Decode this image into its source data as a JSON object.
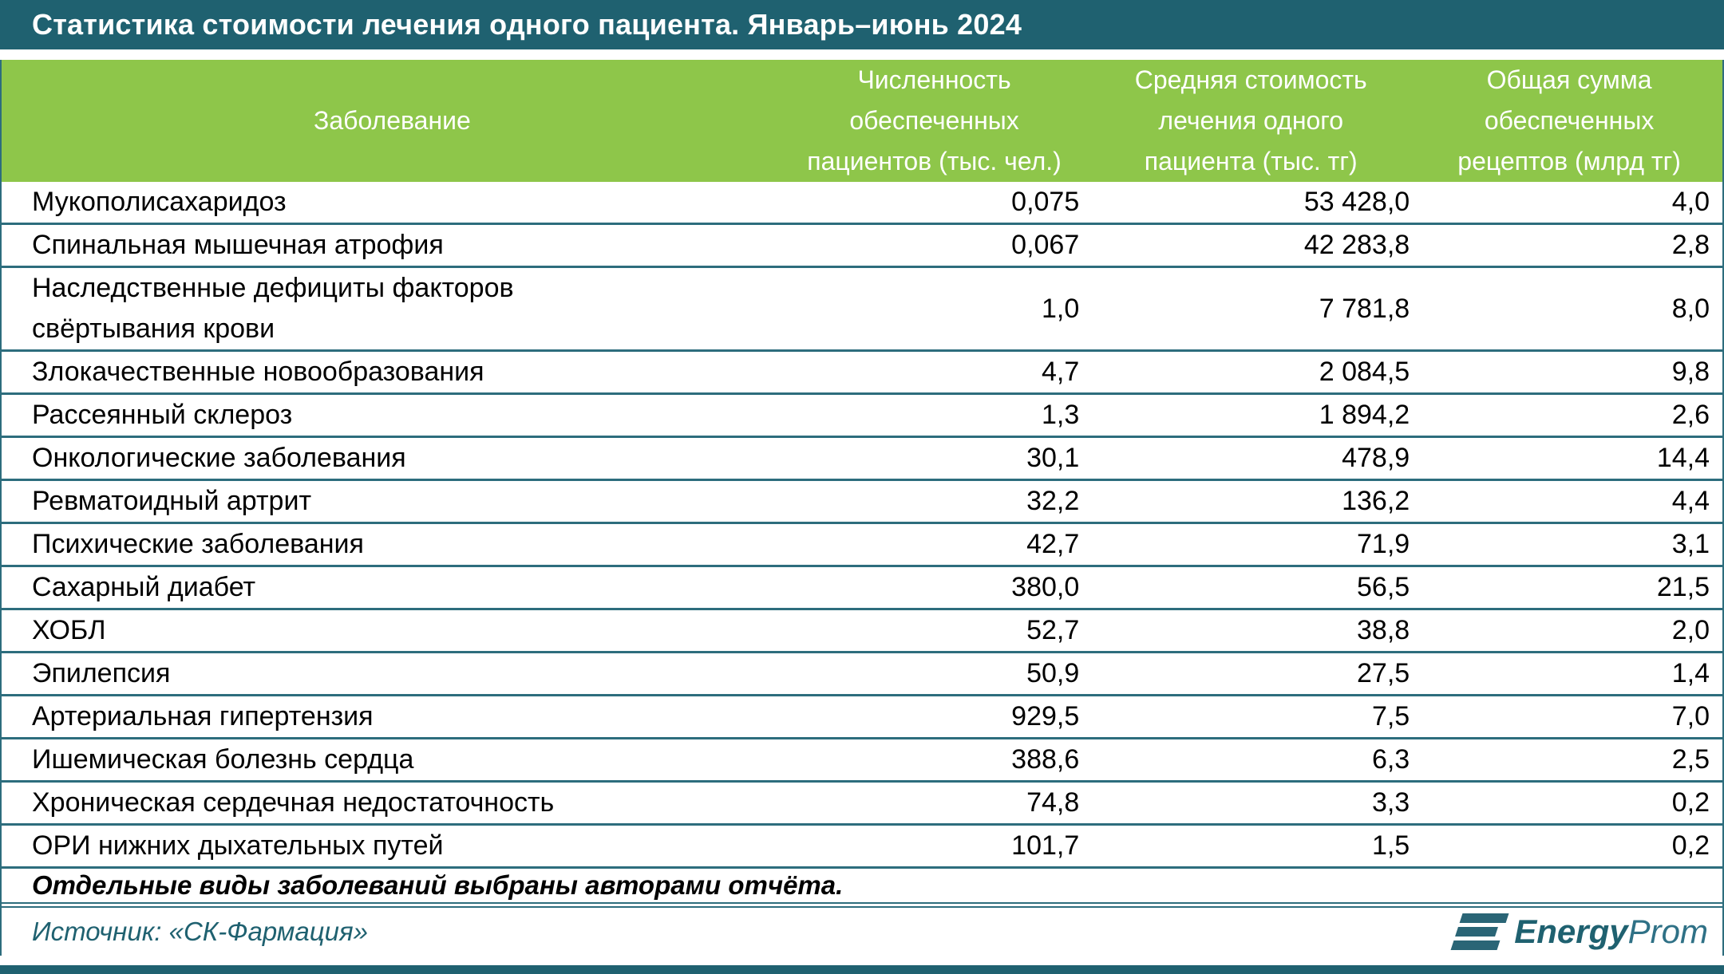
{
  "title": "Статистика стоимости лечения одного пациента. Январь–июнь 2024",
  "colors": {
    "header_teal": "#1f6170",
    "header_green": "#8ec64a",
    "divider_teal": "#2d6d7d",
    "logo_teal": "#2a6576"
  },
  "table": {
    "columns": [
      {
        "label": "Заболевание"
      },
      {
        "label": "Численность\nобеспеченных\nпациентов (тыс. чел.)"
      },
      {
        "label": "Средняя стоимость\nлечения одного\nпациента (тыс. тг)"
      },
      {
        "label": "Общая сумма\nобеспеченных\nрецептов (млрд тг)"
      }
    ],
    "rows": [
      {
        "disease": "Мукополисахаридоз",
        "patients": "0,075",
        "avg_cost": "53 428,0",
        "total": "4,0"
      },
      {
        "disease": "Спинальная мышечная атрофия",
        "patients": "0,067",
        "avg_cost": "42 283,8",
        "total": "2,8"
      },
      {
        "disease": "Наследственные дефициты факторов\nсвёртывания крови",
        "patients": "1,0",
        "avg_cost": "7 781,8",
        "total": "8,0"
      },
      {
        "disease": "Злокачественные новообразования",
        "patients": "4,7",
        "avg_cost": "2 084,5",
        "total": "9,8"
      },
      {
        "disease": "Рассеянный склероз",
        "patients": "1,3",
        "avg_cost": "1 894,2",
        "total": "2,6"
      },
      {
        "disease": "Онкологические заболевания",
        "patients": "30,1",
        "avg_cost": "478,9",
        "total": "14,4"
      },
      {
        "disease": "Ревматоидный артрит",
        "patients": "32,2",
        "avg_cost": "136,2",
        "total": "4,4"
      },
      {
        "disease": "Психические заболевания",
        "patients": "42,7",
        "avg_cost": "71,9",
        "total": "3,1"
      },
      {
        "disease": "Сахарный диабет",
        "patients": "380,0",
        "avg_cost": "56,5",
        "total": "21,5"
      },
      {
        "disease": "ХОБЛ",
        "patients": "52,7",
        "avg_cost": "38,8",
        "total": "2,0"
      },
      {
        "disease": "Эпилепсия",
        "patients": "50,9",
        "avg_cost": "27,5",
        "total": "1,4"
      },
      {
        "disease": "Артериальная гипертензия",
        "patients": "929,5",
        "avg_cost": "7,5",
        "total": "7,0"
      },
      {
        "disease": "Ишемическая болезнь сердца",
        "patients": "388,6",
        "avg_cost": "6,3",
        "total": "2,5"
      },
      {
        "disease": "Хроническая сердечная недостаточность",
        "patients": "74,8",
        "avg_cost": "3,3",
        "total": "0,2"
      },
      {
        "disease": "ОРИ нижних дыхательных путей",
        "patients": "101,7",
        "avg_cost": "1,5",
        "total": "0,2"
      }
    ]
  },
  "footnote": "Отдельные виды заболеваний выбраны авторами отчёта.",
  "source": "Источник: «СК-Фармация»",
  "logo": {
    "text_primary": "Energy",
    "text_secondary": "Prom"
  },
  "chart_data": {
    "type": "table",
    "title": "Статистика стоимости лечения одного пациента. Январь–июнь 2024",
    "columns": [
      "Заболевание",
      "Численность обеспеченных пациентов (тыс. чел.)",
      "Средняя стоимость лечения одного пациента (тыс. тг)",
      "Общая сумма обеспеченных рецептов (млрд тг)"
    ],
    "rows": [
      [
        "Мукополисахаридоз",
        0.075,
        53428.0,
        4.0
      ],
      [
        "Спинальная мышечная атрофия",
        0.067,
        42283.8,
        2.8
      ],
      [
        "Наследственные дефициты факторов свёртывания крови",
        1.0,
        7781.8,
        8.0
      ],
      [
        "Злокачественные новообразования",
        4.7,
        2084.5,
        9.8
      ],
      [
        "Рассеянный склероз",
        1.3,
        1894.2,
        2.6
      ],
      [
        "Онкологические заболевания",
        30.1,
        478.9,
        14.4
      ],
      [
        "Ревматоидный артрит",
        32.2,
        136.2,
        4.4
      ],
      [
        "Психические заболевания",
        42.7,
        71.9,
        3.1
      ],
      [
        "Сахарный диабет",
        380.0,
        56.5,
        21.5
      ],
      [
        "ХОБЛ",
        52.7,
        38.8,
        2.0
      ],
      [
        "Эпилепсия",
        50.9,
        27.5,
        1.4
      ],
      [
        "Артериальная гипертензия",
        929.5,
        7.5,
        7.0
      ],
      [
        "Ишемическая болезнь сердца",
        388.6,
        6.3,
        2.5
      ],
      [
        "Хроническая сердечная недостаточность",
        74.8,
        3.3,
        0.2
      ],
      [
        "ОРИ нижних дыхательных путей",
        101.7,
        1.5,
        0.2
      ]
    ],
    "footnote": "Отдельные виды заболеваний выбраны авторами отчёта.",
    "source": "«СК-Фармация»"
  }
}
